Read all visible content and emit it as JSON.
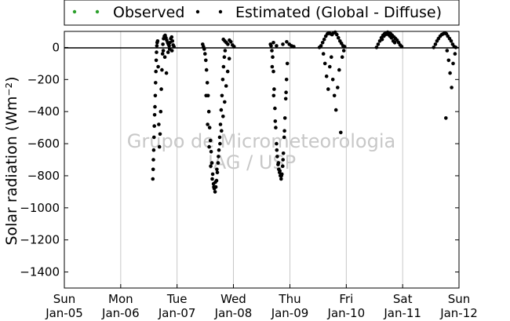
{
  "chart_data": {
    "type": "scatter",
    "title": "",
    "ylabel": "Solar radiation (Wm⁻²)",
    "xlabel": "",
    "xlim": [
      "2005-01-05",
      "2012-01-05"
    ],
    "ylim": [
      -1500,
      100
    ],
    "yticks": [
      0,
      -200,
      -400,
      -600,
      -800,
      -1000,
      -1200,
      -1400
    ],
    "ytick_labels": [
      "0",
      "−200",
      "−400",
      "−600",
      "−800",
      "−1000",
      "−1200",
      "−1400"
    ],
    "xticks": [
      {
        "date": "2005-01-05",
        "day": "Sun",
        "date_label": "Jan-05"
      },
      {
        "date": "2006-01-05",
        "day": "Mon",
        "date_label": "Jan-06"
      },
      {
        "date": "2007-01-05",
        "day": "Tue",
        "date_label": "Jan-07"
      },
      {
        "date": "2008-01-05",
        "day": "Wed",
        "date_label": "Jan-08"
      },
      {
        "date": "2009-01-05",
        "day": "Thu",
        "date_label": "Jan-09"
      },
      {
        "date": "2010-01-05",
        "day": "Fri",
        "date_label": "Jan-10"
      },
      {
        "date": "2011-01-05",
        "day": "Sat",
        "date_label": "Jan-11"
      },
      {
        "date": "2012-01-05",
        "day": "Sun",
        "date_label": "Jan-12"
      }
    ],
    "grid": "vertical",
    "zero_line": true,
    "legend_position": "top",
    "series": [
      {
        "name": "Observed",
        "color": "#2ca02c",
        "marker": "dot",
        "points": []
      },
      {
        "name": "Estimated (Global - Diffuse)",
        "color": "#000000",
        "marker": "dot",
        "points": [
          [
            "2006-08-01",
            -820
          ],
          [
            "2006-08-03",
            -760
          ],
          [
            "2006-08-05",
            -700
          ],
          [
            "2006-08-07",
            -640
          ],
          [
            "2006-08-09",
            -560
          ],
          [
            "2006-08-11",
            -490
          ],
          [
            "2006-08-13",
            -420
          ],
          [
            "2006-08-15",
            -370
          ],
          [
            "2006-08-17",
            -300
          ],
          [
            "2006-08-19",
            -220
          ],
          [
            "2006-08-21",
            -150
          ],
          [
            "2006-08-23",
            -80
          ],
          [
            "2006-08-25",
            -30
          ],
          [
            "2006-08-27",
            10
          ],
          [
            "2006-08-29",
            30
          ],
          [
            "2006-09-01",
            40
          ],
          [
            "2006-09-05",
            -120
          ],
          [
            "2006-09-09",
            -480
          ],
          [
            "2006-09-13",
            -620
          ],
          [
            "2006-09-17",
            -540
          ],
          [
            "2006-09-21",
            -400
          ],
          [
            "2006-09-25",
            -260
          ],
          [
            "2006-09-29",
            -140
          ],
          [
            "2006-10-03",
            -40
          ],
          [
            "2006-10-05",
            20
          ],
          [
            "2006-10-10",
            55
          ],
          [
            "2006-10-15",
            70
          ],
          [
            "2006-10-20",
            75
          ],
          [
            "2006-10-25",
            60
          ],
          [
            "2006-10-30",
            45
          ],
          [
            "2006-11-05",
            30
          ],
          [
            "2006-11-10",
            20
          ],
          [
            "2006-11-15",
            10
          ],
          [
            "2006-11-20",
            30
          ],
          [
            "2006-11-25",
            55
          ],
          [
            "2006-12-01",
            65
          ],
          [
            "2006-12-06",
            40
          ],
          [
            "2006-12-11",
            15
          ],
          [
            "2006-12-16",
            5
          ],
          [
            "2006-10-08",
            -20
          ],
          [
            "2006-10-18",
            -60
          ],
          [
            "2006-10-28",
            -160
          ],
          [
            "2006-11-08",
            -30
          ],
          [
            "2006-11-18",
            -10
          ],
          [
            "2006-12-03",
            -20
          ],
          [
            "2007-06-20",
            20
          ],
          [
            "2007-06-25",
            5
          ],
          [
            "2007-06-30",
            -10
          ],
          [
            "2007-07-05",
            -40
          ],
          [
            "2007-07-10",
            -80
          ],
          [
            "2007-07-15",
            -140
          ],
          [
            "2007-07-20",
            -220
          ],
          [
            "2007-07-25",
            -300
          ],
          [
            "2007-07-30",
            -400
          ],
          [
            "2007-08-04",
            -500
          ],
          [
            "2007-08-09",
            -580
          ],
          [
            "2007-08-14",
            -650
          ],
          [
            "2007-08-19",
            -720
          ],
          [
            "2007-08-24",
            -790
          ],
          [
            "2007-08-29",
            -850
          ],
          [
            "2007-09-03",
            -880
          ],
          [
            "2007-09-08",
            -900
          ],
          [
            "2007-09-13",
            -870
          ],
          [
            "2007-09-18",
            -830
          ],
          [
            "2007-09-23",
            -780
          ],
          [
            "2007-09-28",
            -720
          ],
          [
            "2007-10-03",
            -640
          ],
          [
            "2007-10-08",
            -560
          ],
          [
            "2007-10-13",
            -480
          ],
          [
            "2007-10-18",
            -390
          ],
          [
            "2007-10-23",
            -300
          ],
          [
            "2007-10-28",
            -200
          ],
          [
            "2007-11-02",
            -120
          ],
          [
            "2007-11-07",
            -60
          ],
          [
            "2007-11-12",
            -20
          ],
          [
            "2007-07-12",
            -300
          ],
          [
            "2007-07-22",
            -480
          ],
          [
            "2007-08-01",
            -620
          ],
          [
            "2007-08-11",
            -740
          ],
          [
            "2007-08-21",
            -820
          ],
          [
            "2007-08-31",
            -870
          ],
          [
            "2007-09-10",
            -840
          ],
          [
            "2007-09-20",
            -760
          ],
          [
            "2007-09-30",
            -680
          ],
          [
            "2007-10-10",
            -600
          ],
          [
            "2007-10-20",
            -520
          ],
          [
            "2007-10-30",
            -430
          ],
          [
            "2007-11-09",
            -340
          ],
          [
            "2007-11-19",
            -240
          ],
          [
            "2007-11-29",
            -150
          ],
          [
            "2007-12-09",
            -70
          ],
          [
            "2007-11-01",
            50
          ],
          [
            "2007-11-10",
            40
          ],
          [
            "2007-11-20",
            30
          ],
          [
            "2007-11-30",
            20
          ],
          [
            "2007-12-10",
            45
          ],
          [
            "2007-12-20",
            35
          ],
          [
            "2007-12-30",
            15
          ],
          [
            "2008-01-09",
            5
          ],
          [
            "2008-09-05",
            10
          ],
          [
            "2008-09-10",
            -20
          ],
          [
            "2008-09-15",
            -60
          ],
          [
            "2008-09-20",
            -150
          ],
          [
            "2008-09-25",
            -260
          ],
          [
            "2008-09-30",
            -380
          ],
          [
            "2008-10-05",
            -500
          ],
          [
            "2008-10-10",
            -600
          ],
          [
            "2008-10-15",
            -680
          ],
          [
            "2008-10-20",
            -730
          ],
          [
            "2008-10-25",
            -760
          ],
          [
            "2008-10-30",
            -780
          ],
          [
            "2008-11-04",
            -800
          ],
          [
            "2008-11-09",
            -820
          ],
          [
            "2008-11-14",
            -790
          ],
          [
            "2008-11-19",
            -740
          ],
          [
            "2008-11-24",
            -660
          ],
          [
            "2008-11-29",
            -560
          ],
          [
            "2008-12-04",
            -440
          ],
          [
            "2008-12-09",
            -320
          ],
          [
            "2008-12-14",
            -200
          ],
          [
            "2008-12-19",
            -100
          ],
          [
            "2008-09-12",
            -120
          ],
          [
            "2008-09-22",
            -300
          ],
          [
            "2008-10-02",
            -460
          ],
          [
            "2008-10-12",
            -640
          ],
          [
            "2008-10-22",
            -720
          ],
          [
            "2008-11-01",
            -770
          ],
          [
            "2008-11-11",
            -800
          ],
          [
            "2008-11-21",
            -700
          ],
          [
            "2008-12-01",
            -520
          ],
          [
            "2008-12-11",
            -280
          ],
          [
            "2008-09-01",
            20
          ],
          [
            "2008-09-20",
            30
          ],
          [
            "2008-10-10",
            10
          ],
          [
            "2008-11-20",
            20
          ],
          [
            "2008-12-15",
            35
          ],
          [
            "2009-01-01",
            20
          ],
          [
            "2009-01-15",
            10
          ],
          [
            "2009-01-30",
            5
          ],
          [
            "2009-07-15",
            0
          ],
          [
            "2009-07-25",
            10
          ],
          [
            "2009-08-05",
            30
          ],
          [
            "2009-08-15",
            50
          ],
          [
            "2009-08-25",
            70
          ],
          [
            "2009-09-05",
            85
          ],
          [
            "2009-09-15",
            90
          ],
          [
            "2009-09-25",
            85
          ],
          [
            "2009-10-05",
            80
          ],
          [
            "2009-10-15",
            90
          ],
          [
            "2009-10-25",
            95
          ],
          [
            "2009-11-05",
            80
          ],
          [
            "2009-11-15",
            60
          ],
          [
            "2009-11-25",
            40
          ],
          [
            "2009-12-05",
            25
          ],
          [
            "2009-12-15",
            10
          ],
          [
            "2009-12-25",
            5
          ],
          [
            "2009-08-10",
            -40
          ],
          [
            "2009-08-20",
            -100
          ],
          [
            "2009-08-30",
            -180
          ],
          [
            "2009-09-10",
            -260
          ],
          [
            "2009-09-20",
            -120
          ],
          [
            "2009-09-30",
            -60
          ],
          [
            "2009-10-10",
            -200
          ],
          [
            "2009-10-20",
            -300
          ],
          [
            "2009-10-30",
            -390
          ],
          [
            "2009-11-10",
            -250
          ],
          [
            "2009-11-20",
            -140
          ],
          [
            "2009-11-30",
            -530
          ],
          [
            "2009-12-10",
            -60
          ],
          [
            "2009-12-20",
            -20
          ],
          [
            "2010-07-20",
            0
          ],
          [
            "2010-07-30",
            20
          ],
          [
            "2010-08-10",
            40
          ],
          [
            "2010-08-20",
            60
          ],
          [
            "2010-08-30",
            75
          ],
          [
            "2010-09-10",
            85
          ],
          [
            "2010-09-20",
            90
          ],
          [
            "2010-09-30",
            95
          ],
          [
            "2010-10-10",
            90
          ],
          [
            "2010-10-20",
            85
          ],
          [
            "2010-10-30",
            75
          ],
          [
            "2010-11-10",
            65
          ],
          [
            "2010-11-20",
            55
          ],
          [
            "2010-11-30",
            45
          ],
          [
            "2010-12-10",
            30
          ],
          [
            "2010-12-20",
            15
          ],
          [
            "2010-12-30",
            5
          ],
          [
            "2010-08-25",
            50
          ],
          [
            "2010-09-05",
            70
          ],
          [
            "2010-09-15",
            80
          ],
          [
            "2010-09-25",
            85
          ],
          [
            "2010-10-05",
            80
          ],
          [
            "2010-10-15",
            70
          ],
          [
            "2010-10-25",
            60
          ],
          [
            "2010-11-05",
            40
          ],
          [
            "2010-11-15",
            30
          ],
          [
            "2011-07-25",
            0
          ],
          [
            "2011-08-05",
            20
          ],
          [
            "2011-08-15",
            40
          ],
          [
            "2011-08-25",
            55
          ],
          [
            "2011-09-05",
            70
          ],
          [
            "2011-09-15",
            80
          ],
          [
            "2011-09-25",
            85
          ],
          [
            "2011-10-05",
            90
          ],
          [
            "2011-10-15",
            85
          ],
          [
            "2011-10-25",
            70
          ],
          [
            "2011-11-05",
            55
          ],
          [
            "2011-11-15",
            40
          ],
          [
            "2011-11-25",
            20
          ],
          [
            "2011-12-05",
            5
          ],
          [
            "2011-12-15",
            0
          ],
          [
            "2011-10-20",
            -20
          ],
          [
            "2011-10-30",
            -80
          ],
          [
            "2011-11-08",
            -160
          ],
          [
            "2011-11-18",
            -250
          ],
          [
            "2011-11-28",
            -100
          ],
          [
            "2011-10-12",
            -440
          ],
          [
            "2011-12-10",
            -40
          ]
        ]
      }
    ]
  },
  "watermark": {
    "line1": "Grupo de Micrometeorologia",
    "line2": "IAG / USP"
  }
}
